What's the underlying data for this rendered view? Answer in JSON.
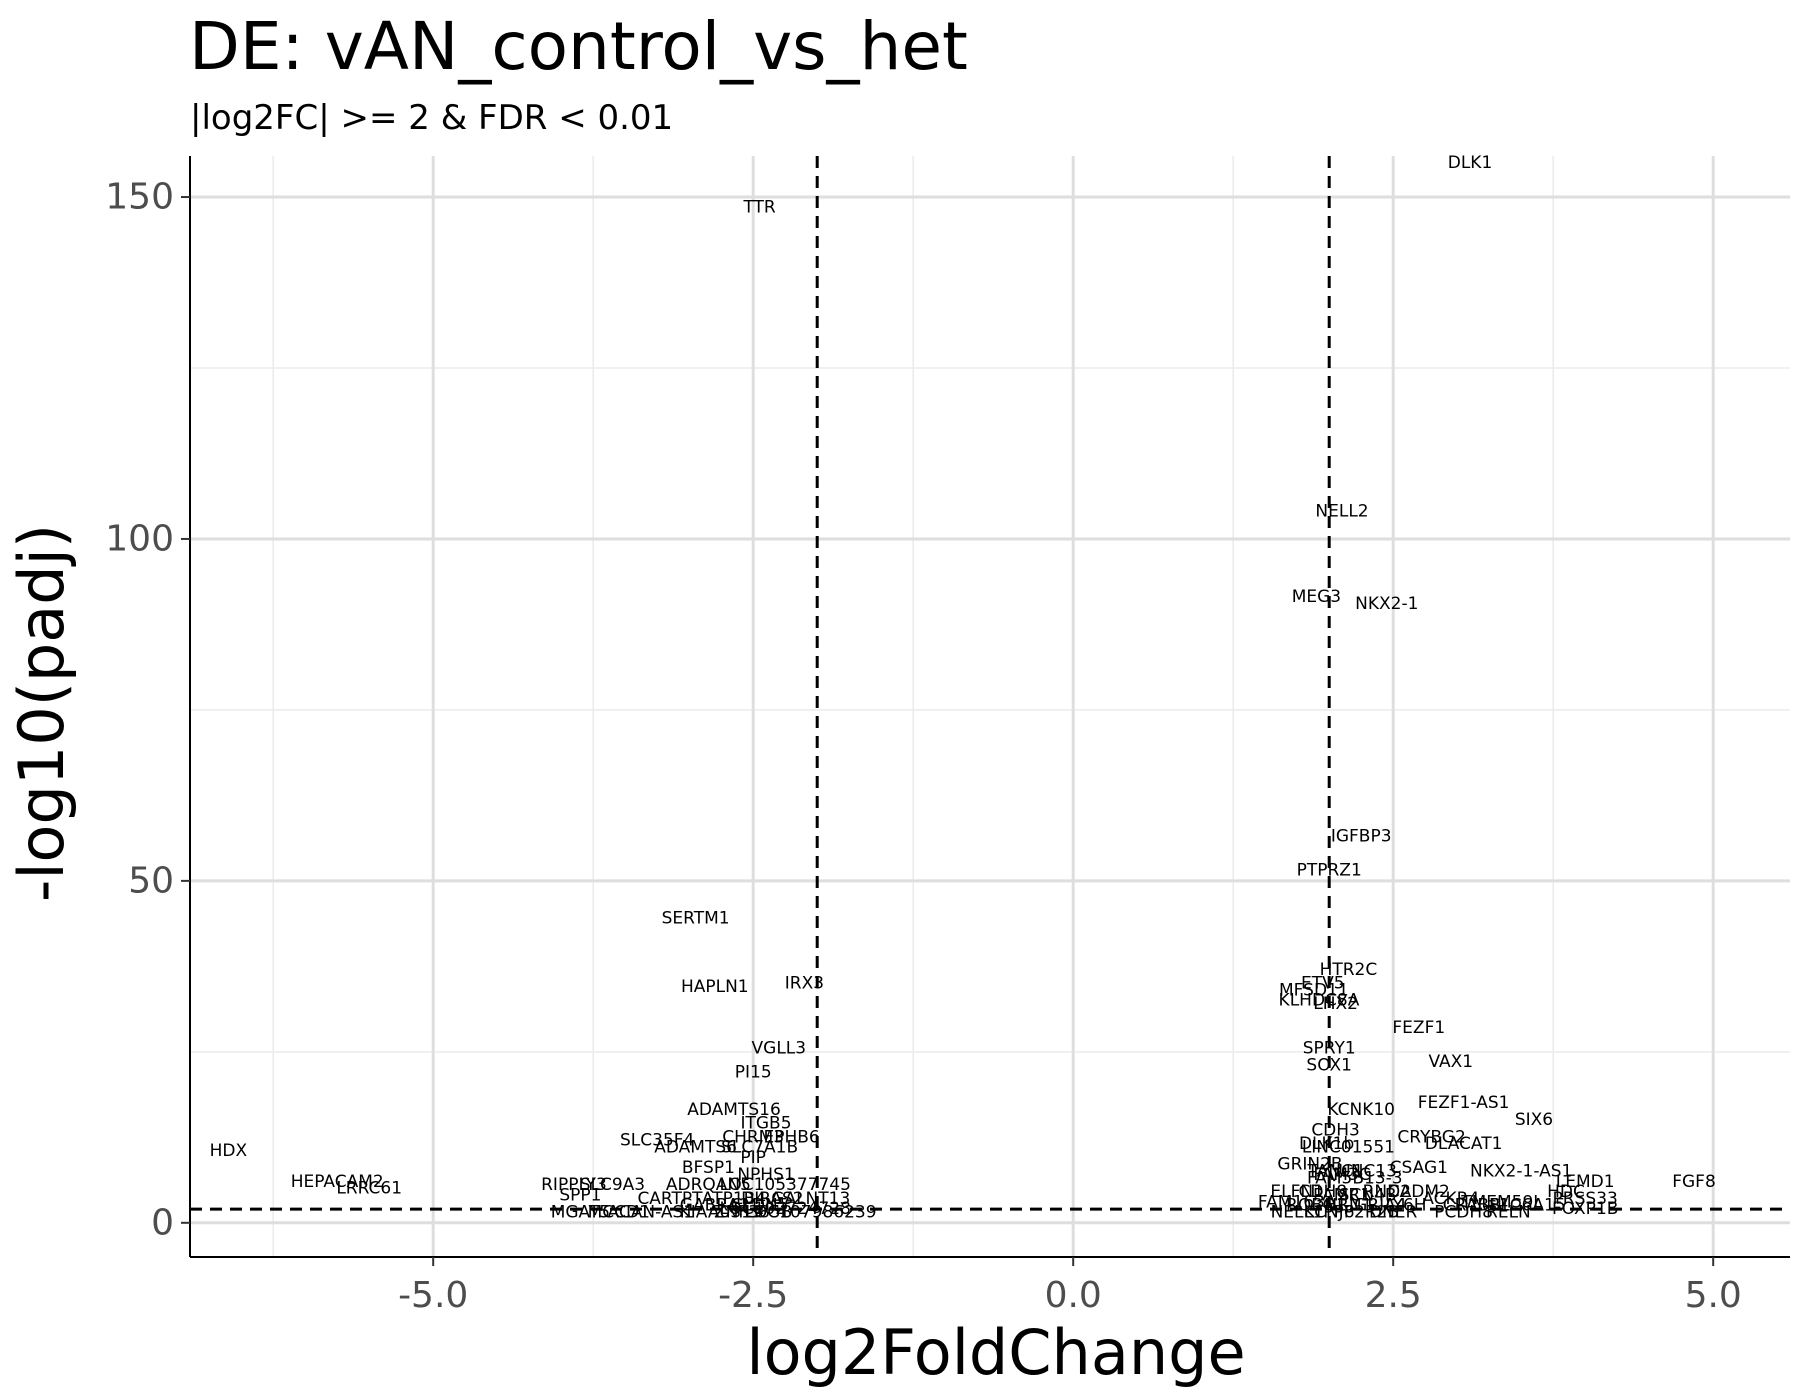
{
  "chart_data": {
    "type": "scatter",
    "title": "DE: vAN_control_vs_het",
    "subtitle": "|log2FC| >= 2 & FDR < 0.01",
    "xlabel": "log2FoldChange",
    "ylabel": "-log10(padj)",
    "xlim": [
      -6.9,
      5.6
    ],
    "ylim": [
      -5,
      156
    ],
    "x_ticks": [
      -5.0,
      -2.5,
      0.0,
      2.5,
      5.0
    ],
    "x_tick_labels": [
      "-5.0",
      "-2.5",
      "0.0",
      "2.5",
      "5.0"
    ],
    "y_ticks": [
      0,
      50,
      100,
      150
    ],
    "y_tick_labels": [
      "0",
      "50",
      "100",
      "150"
    ],
    "grid": true,
    "thresholds": {
      "vertical": [
        -2,
        2
      ],
      "horizontal": 2
    },
    "labels": [
      {
        "text": "DLK1",
        "x": 3.1,
        "y": 155
      },
      {
        "text": "TTR",
        "x": -2.45,
        "y": 148.5
      },
      {
        "text": "NELL2",
        "x": 2.1,
        "y": 104
      },
      {
        "text": "MEG3",
        "x": 1.9,
        "y": 91.5
      },
      {
        "text": "NKX2-1",
        "x": 2.45,
        "y": 90.5
      },
      {
        "text": "IGFBP3",
        "x": 2.25,
        "y": 56.5
      },
      {
        "text": "PTPRZ1",
        "x": 2.0,
        "y": 51.5
      },
      {
        "text": "SERTM1",
        "x": -2.95,
        "y": 44.5
      },
      {
        "text": "HTR2C",
        "x": 2.15,
        "y": 37
      },
      {
        "text": "ETV5",
        "x": 1.95,
        "y": 35
      },
      {
        "text": "IRX3",
        "x": -2.1,
        "y": 35
      },
      {
        "text": "HAPLN1",
        "x": -2.8,
        "y": 34.5
      },
      {
        "text": "MFSD11",
        "x": 1.88,
        "y": 34
      },
      {
        "text": "KLHDC8A",
        "x": 1.92,
        "y": 32.5
      },
      {
        "text": "LHX2",
        "x": 2.05,
        "y": 32
      },
      {
        "text": "FEZF1",
        "x": 2.7,
        "y": 28.5
      },
      {
        "text": "VGLL3",
        "x": -2.3,
        "y": 25.5
      },
      {
        "text": "SPRY1",
        "x": 2.0,
        "y": 25.5
      },
      {
        "text": "SOX1",
        "x": 2.0,
        "y": 23
      },
      {
        "text": "VAX1",
        "x": 2.95,
        "y": 23.5
      },
      {
        "text": "PI15",
        "x": -2.5,
        "y": 22
      },
      {
        "text": "ADAMTS16",
        "x": -2.65,
        "y": 16.5
      },
      {
        "text": "KCNK10",
        "x": 2.25,
        "y": 16.5
      },
      {
        "text": "FEZF1-AS1",
        "x": 3.05,
        "y": 17.5
      },
      {
        "text": "SIX6",
        "x": 3.6,
        "y": 15
      },
      {
        "text": "ITGB5",
        "x": -2.4,
        "y": 14.5
      },
      {
        "text": "CDH3",
        "x": 2.05,
        "y": 13.5
      },
      {
        "text": "CHRM3",
        "x": -2.5,
        "y": 12.5
      },
      {
        "text": "EPHB6",
        "x": -2.2,
        "y": 12.5
      },
      {
        "text": "SLC35F4",
        "x": -3.25,
        "y": 12
      },
      {
        "text": "CRYBG2",
        "x": 2.8,
        "y": 12.5
      },
      {
        "text": "DLK1b",
        "x": 1.98,
        "y": 11.5
      },
      {
        "text": "LINC01551",
        "x": 2.15,
        "y": 11
      },
      {
        "text": "DLACAT1",
        "x": 3.05,
        "y": 11.5
      },
      {
        "text": "ADAMTS6",
        "x": -2.95,
        "y": 11
      },
      {
        "text": "SLC7A1B",
        "x": -2.45,
        "y": 11
      },
      {
        "text": "HDX",
        "x": -6.6,
        "y": 10.5
      },
      {
        "text": "GRIN2B",
        "x": 1.85,
        "y": 8.5
      },
      {
        "text": "CSAG1",
        "x": 2.7,
        "y": 8
      },
      {
        "text": "BFSP1",
        "x": -2.85,
        "y": 8
      },
      {
        "text": "NKX2-1-AS1",
        "x": 3.5,
        "y": 7.5
      },
      {
        "text": "TANC1",
        "x": 2.05,
        "y": 7.5
      },
      {
        "text": "FAM3C",
        "x": 2.1,
        "y": 7
      },
      {
        "text": "UNC13",
        "x": 2.3,
        "y": 7.5
      },
      {
        "text": "NPHS1",
        "x": -2.4,
        "y": 7
      },
      {
        "text": "PIP",
        "x": -2.5,
        "y": 9.5
      },
      {
        "text": "FGF8",
        "x": 4.85,
        "y": 6
      },
      {
        "text": "LEMD1",
        "x": 4.0,
        "y": 6
      },
      {
        "text": "HEPACAM2",
        "x": -5.75,
        "y": 6
      },
      {
        "text": "FAM5B13-3",
        "x": 2.2,
        "y": 6.5
      },
      {
        "text": "RIPPLY3",
        "x": -3.9,
        "y": 5.5
      },
      {
        "text": "SLC9A3",
        "x": -3.6,
        "y": 5.5
      },
      {
        "text": "LRRC61",
        "x": -5.5,
        "y": 5
      },
      {
        "text": "ADRQAN5",
        "x": -2.85,
        "y": 5.5
      },
      {
        "text": "LOC105377745",
        "x": -2.25,
        "y": 5.5
      },
      {
        "text": "HDC",
        "x": 3.85,
        "y": 4.5
      },
      {
        "text": "SPP1",
        "x": -3.85,
        "y": 4
      },
      {
        "text": "ELFN1",
        "x": 1.75,
        "y": 4.5
      },
      {
        "text": "CDH8",
        "x": 1.95,
        "y": 4.5
      },
      {
        "text": "PAMR1",
        "x": 2.1,
        "y": 4
      },
      {
        "text": "SCN4B",
        "x": 2.3,
        "y": 4
      },
      {
        "text": "RND2",
        "x": 2.45,
        "y": 4.5
      },
      {
        "text": "CADM2",
        "x": 2.7,
        "y": 4.5
      },
      {
        "text": "ACKR4",
        "x": 2.95,
        "y": 3.5
      },
      {
        "text": "PRSS33",
        "x": 4.0,
        "y": 3.5
      },
      {
        "text": "TMEM59L",
        "x": 3.35,
        "y": 3
      },
      {
        "text": "CARTPT",
        "x": -3.15,
        "y": 3.5
      },
      {
        "text": "ATP1B4",
        "x": -2.65,
        "y": 3.5
      },
      {
        "text": "DIRAS2",
        "x": -2.35,
        "y": 3.5
      },
      {
        "text": "GALNT13",
        "x": -2.05,
        "y": 3.5
      },
      {
        "text": "FAM163A",
        "x": 1.75,
        "y": 3
      },
      {
        "text": "ROBO1",
        "x": 1.9,
        "y": 2.5
      },
      {
        "text": "NRN1",
        "x": 2.15,
        "y": 2.5
      },
      {
        "text": "GRIA4",
        "x": 2.4,
        "y": 2.5
      },
      {
        "text": "LY6H",
        "x": 2.6,
        "y": 2.5
      },
      {
        "text": "CRABP1",
        "x": 3.15,
        "y": 2.5
      },
      {
        "text": "SLC6A15",
        "x": 3.55,
        "y": 2.5
      },
      {
        "text": "FOXP1B",
        "x": 4.0,
        "y": 2
      },
      {
        "text": "GABRA2",
        "x": -2.8,
        "y": 2.5
      },
      {
        "text": "CLDN5",
        "x": -2.45,
        "y": 2.5
      },
      {
        "text": "LOC102724728",
        "x": -2.25,
        "y": 2
      },
      {
        "text": "MGAT5",
        "x": -3.85,
        "y": 1.5
      },
      {
        "text": "MCCD1",
        "x": -3.55,
        "y": 1.5
      },
      {
        "text": "ACAN-AS1",
        "x": -3.3,
        "y": 1.5
      },
      {
        "text": "LOC107986239",
        "x": -2.05,
        "y": 1.5
      },
      {
        "text": "KIAA0319",
        "x": -2.75,
        "y": 1.5
      },
      {
        "text": "ZNF385B",
        "x": -2.5,
        "y": 1.5
      },
      {
        "text": "NELL1",
        "x": 1.75,
        "y": 1.5
      },
      {
        "text": "KCNJ6",
        "x": 2.0,
        "y": 1.5
      },
      {
        "text": "PPP2R2B",
        "x": 2.25,
        "y": 1.5
      },
      {
        "text": "DNER",
        "x": 2.5,
        "y": 1.5
      },
      {
        "text": "PCDH8",
        "x": 3.05,
        "y": 1.5
      },
      {
        "text": "RELN",
        "x": 3.4,
        "y": 1.5
      }
    ]
  }
}
